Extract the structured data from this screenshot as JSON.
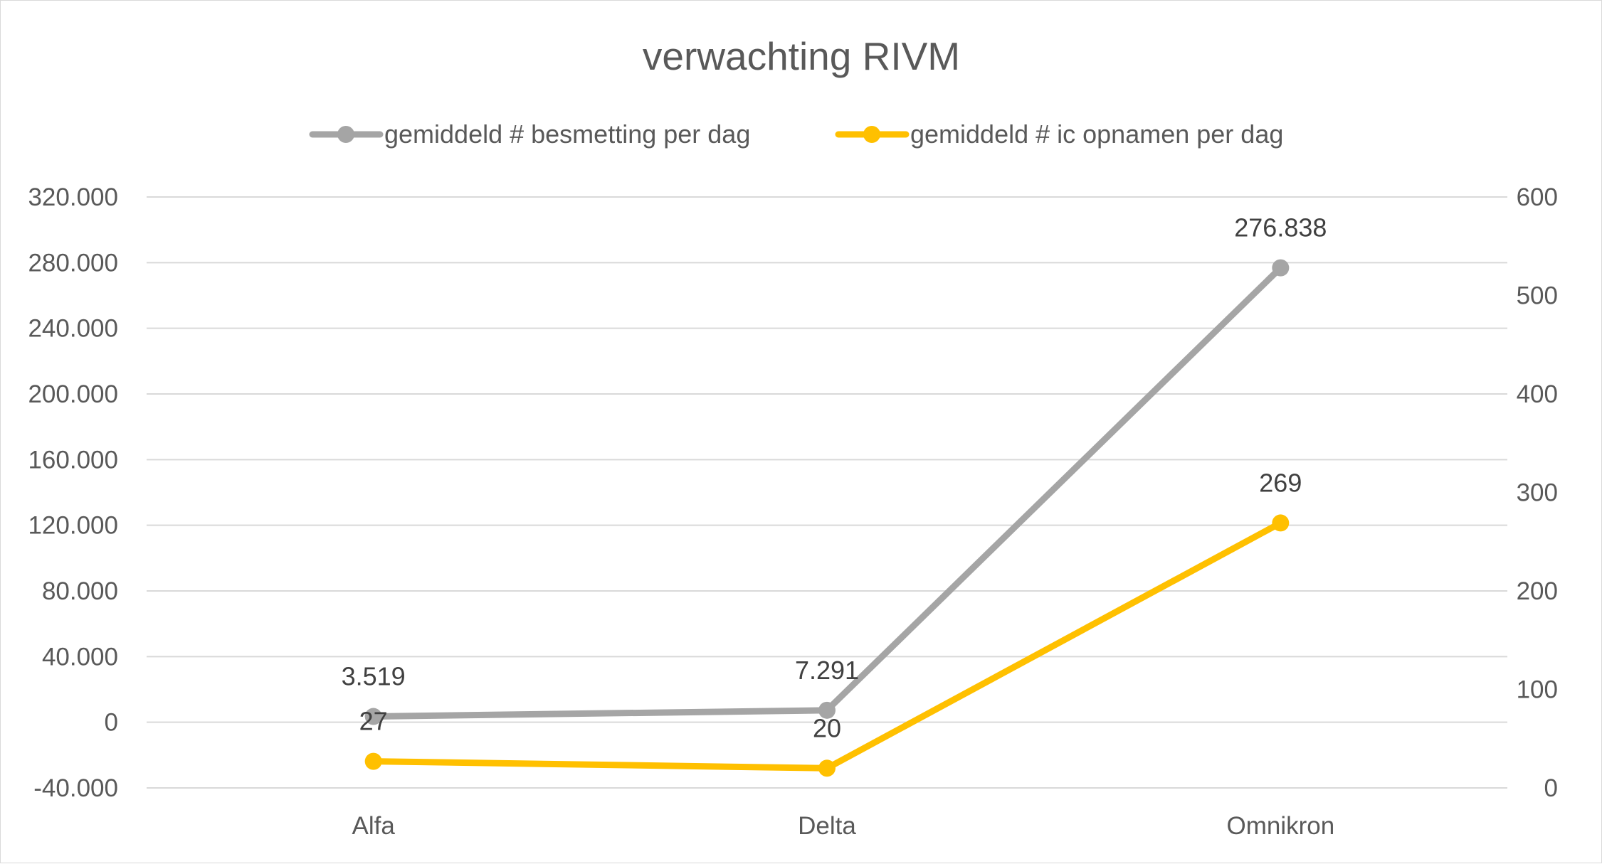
{
  "chart_data": {
    "type": "line",
    "title": "verwachting RIVM",
    "categories": [
      "Alfa",
      "Delta",
      "Omnikron"
    ],
    "series": [
      {
        "name": "gemiddeld # besmetting per dag",
        "axis": "left",
        "color": "#a5a5a5",
        "values": [
          3519,
          7291,
          276838
        ],
        "labels": [
          "3.519",
          "7.291",
          "276.838"
        ]
      },
      {
        "name": "gemiddeld # ic opnamen per dag",
        "axis": "right",
        "color": "#ffc000",
        "values": [
          27,
          20,
          269
        ],
        "labels": [
          "27",
          "20",
          "269"
        ]
      }
    ],
    "y_left": {
      "ylim": [
        -40000,
        320000
      ],
      "ticks": [
        -40000,
        0,
        40000,
        80000,
        120000,
        160000,
        200000,
        240000,
        280000,
        320000
      ],
      "tick_labels": [
        "-40.000",
        "0",
        "40.000",
        "80.000",
        "120.000",
        "160.000",
        "200.000",
        "240.000",
        "280.000",
        "320.000"
      ]
    },
    "y_right": {
      "ylim": [
        0,
        600
      ],
      "ticks": [
        0,
        100,
        200,
        300,
        400,
        500,
        600
      ],
      "tick_labels": [
        "0",
        "100",
        "200",
        "300",
        "400",
        "500",
        "600"
      ]
    },
    "grid": true,
    "legend_position": "top"
  }
}
